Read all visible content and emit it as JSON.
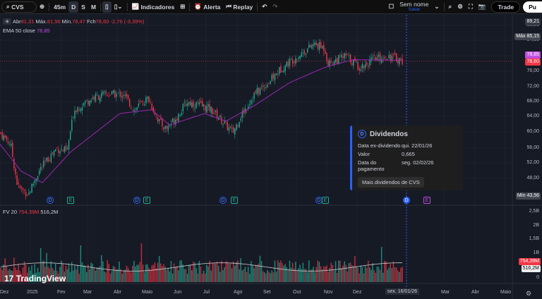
{
  "toolbar": {
    "symbol": "CVS",
    "intervals": [
      "45m",
      "D",
      "S",
      "M"
    ],
    "indicators": "Indicadores",
    "alert": "Alerta",
    "replay": "Replay",
    "layout_name": "Sem nome",
    "layout_save": "Salvar",
    "trade": "Trade",
    "publish": "Pu"
  },
  "legend": {
    "open_label": "Abr",
    "open": "81,31",
    "high_label": "Máx.",
    "high": "81,56",
    "low_label": "Mín.",
    "low": "78,47",
    "close_label": "Fch",
    "close": "78,60",
    "change": "-2,76 (-3,39%)",
    "ema_label": "EMA 50 close",
    "ema_value": "78,85",
    "vol_label": "FV 20",
    "vol_value": "754,39M",
    "vol_ma": "516,2M"
  },
  "price_axis": {
    "ticks": [
      "88,00",
      "84,00",
      "76,00",
      "72,00",
      "68,00",
      "64,00",
      "60,00",
      "56,00",
      "52,00",
      "48,00"
    ],
    "top": "89,21",
    "max_label": "Máx",
    "max": "85,15",
    "ema_tag": "78,85",
    "last": "78,60",
    "min_label": "Mín",
    "min": "43,56"
  },
  "volume_axis": {
    "ticks": [
      "2,5B",
      "2B",
      "1,5B",
      "1B",
      "0"
    ],
    "vol_tag": "754,39M",
    "ma_tag": "516,2M"
  },
  "time_axis": {
    "labels": [
      "Dez",
      "2025",
      "Fev",
      "Mar",
      "Abr",
      "Maio",
      "Jun",
      "Jul",
      "Ago",
      "Set",
      "Out",
      "Nov",
      "Dez",
      "Mar",
      "Abr",
      "Maio"
    ],
    "cursor_date": "sex. 16/01/26"
  },
  "events": [
    "D",
    "E",
    "D",
    "E",
    "D",
    "E",
    "D",
    "E",
    "D",
    "E"
  ],
  "dividend_popup": {
    "badge": "D",
    "title": "Dividendos",
    "rows": [
      {
        "k": "Data ex-dividendo",
        "v": "qui. 22/01/26"
      },
      {
        "k": "Valor",
        "v": "0,665"
      },
      {
        "k": "Data do pagamento",
        "v": "seg. 02/02/26"
      }
    ],
    "button": "Mais dividendos de CVS"
  },
  "watermark": "TradingView",
  "price_path": [
    [
      0,
      60
    ],
    [
      15,
      57
    ],
    [
      25,
      46
    ],
    [
      40,
      44
    ],
    [
      55,
      50
    ],
    [
      80,
      56
    ],
    [
      95,
      55
    ],
    [
      105,
      66
    ],
    [
      130,
      69
    ],
    [
      150,
      70
    ],
    [
      175,
      70
    ],
    [
      190,
      66
    ],
    [
      210,
      69
    ],
    [
      225,
      63
    ],
    [
      235,
      61
    ],
    [
      250,
      64
    ],
    [
      265,
      68
    ],
    [
      285,
      67
    ],
    [
      300,
      66
    ],
    [
      320,
      62
    ],
    [
      330,
      60
    ],
    [
      340,
      64
    ],
    [
      360,
      70
    ],
    [
      380,
      73
    ],
    [
      400,
      77
    ],
    [
      430,
      81
    ],
    [
      445,
      83
    ],
    [
      460,
      82
    ],
    [
      465,
      78
    ],
    [
      490,
      80
    ],
    [
      510,
      77
    ],
    [
      530,
      79
    ],
    [
      550,
      80
    ],
    [
      572,
      78.6
    ]
  ],
  "ema_path": [
    [
      0,
      57
    ],
    [
      30,
      50
    ],
    [
      60,
      47
    ],
    [
      100,
      55
    ],
    [
      170,
      65
    ],
    [
      215,
      66
    ],
    [
      240,
      62
    ],
    [
      290,
      65
    ],
    [
      320,
      63
    ],
    [
      360,
      67
    ],
    [
      410,
      73
    ],
    [
      460,
      77
    ],
    [
      500,
      79
    ],
    [
      572,
      78.85
    ]
  ],
  "colors": {
    "up": "#22ab94",
    "down": "#f23645",
    "ema": "#9c27b0",
    "accent": "#2962ff"
  }
}
